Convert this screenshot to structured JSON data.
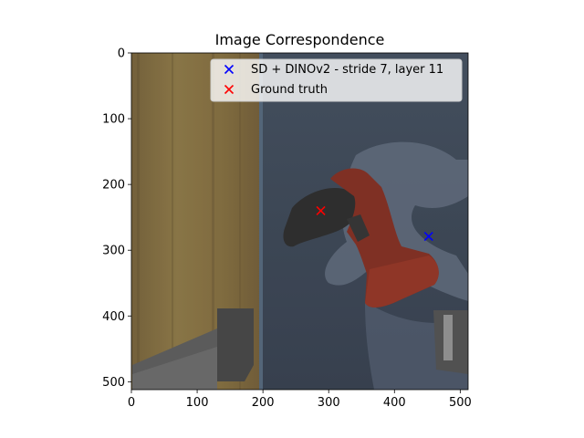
{
  "chart_data": {
    "type": "scatter",
    "title": "Image Correspondence",
    "xlabel": "",
    "ylabel": "",
    "xlim": [
      0,
      512
    ],
    "ylim": [
      512,
      0
    ],
    "x_ticks": [
      0,
      100,
      200,
      300,
      400,
      500
    ],
    "y_ticks": [
      0,
      100,
      200,
      300,
      400,
      500
    ],
    "grid": false,
    "legend_position": "top-right",
    "background": "photo of a red and black power drill held by a robot gripper against a wooden panel and a blue wall",
    "series": [
      {
        "name": "SD + DINOv2 - stride 7, layer 11",
        "marker": "x",
        "color": "#0000ff",
        "points": [
          {
            "x": 452,
            "y": 279
          }
        ]
      },
      {
        "name": "Ground truth",
        "marker": "x",
        "color": "#ff0000",
        "points": [
          {
            "x": 288,
            "y": 240
          }
        ]
      }
    ]
  }
}
